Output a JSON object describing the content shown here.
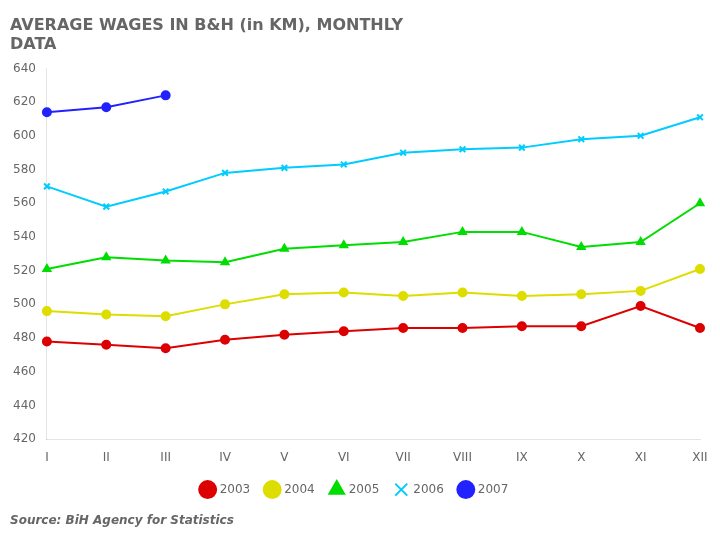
{
  "chart_data": {
    "type": "line",
    "title": "AVERAGE WAGES IN B&H (in KM), MONTHLY",
    "subtitle": "DATA",
    "annotations": [
      "Source: BiH Agency for Statistics"
    ],
    "categories": [
      "I",
      "II",
      "III",
      "IV",
      "V",
      "VI",
      "VII",
      "VIII",
      "IX",
      "X",
      "XI",
      "XII"
    ],
    "series": [
      {
        "name": "2003",
        "color": "#dd0000",
        "marker": "circle",
        "values": [
          478,
          476,
          474,
          479,
          482,
          484,
          486,
          486,
          487,
          487,
          499,
          486
        ]
      },
      {
        "name": "2004",
        "color": "#dddd00",
        "marker": "circle",
        "values": [
          496,
          494,
          493,
          500,
          506,
          507,
          505,
          507,
          505,
          506,
          508,
          521
        ]
      },
      {
        "name": "2005",
        "color": "#00dd00",
        "marker": "triangle",
        "values": [
          521,
          528,
          526,
          525,
          533,
          535,
          537,
          543,
          543,
          534,
          537,
          560
        ]
      },
      {
        "name": "2006",
        "color": "#00ccff",
        "marker": "x",
        "values": [
          570,
          558,
          567,
          578,
          581,
          583,
          590,
          592,
          593,
          598,
          600,
          611
        ]
      },
      {
        "name": "2007",
        "color": "#2222ff",
        "marker": "circle",
        "values": [
          614,
          617,
          624,
          null,
          null,
          null,
          null,
          null,
          null,
          null,
          null,
          null
        ]
      }
    ],
    "ylim": [
      420,
      640
    ],
    "yticks": [
      420,
      440,
      460,
      480,
      500,
      520,
      540,
      560,
      580,
      600,
      620,
      640
    ],
    "grid": false,
    "legend": "bottom"
  }
}
